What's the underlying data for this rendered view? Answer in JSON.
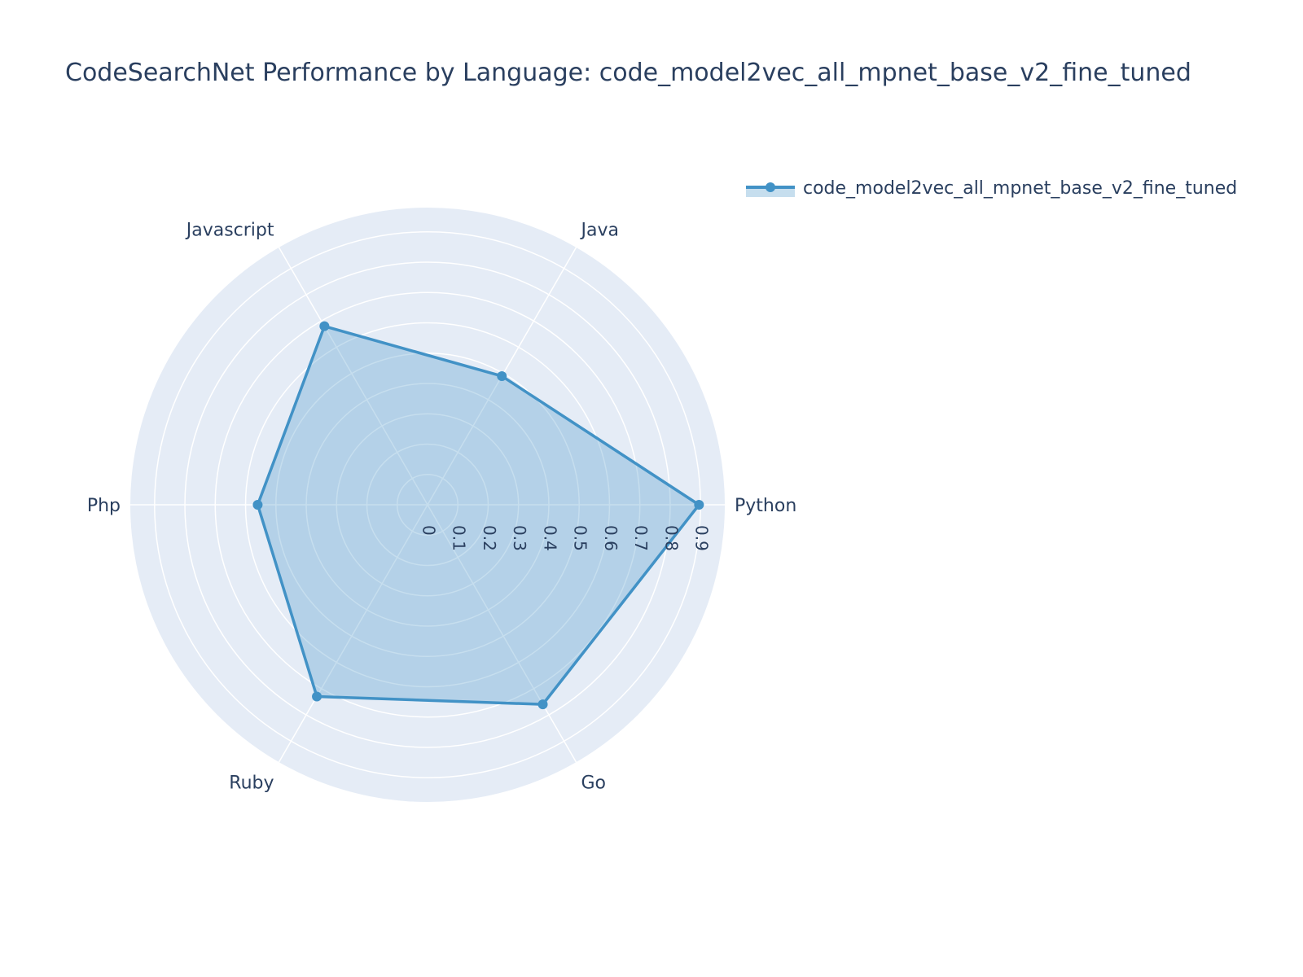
{
  "chart_data": {
    "type": "radar",
    "title": "CodeSearchNet Performance by Language: code_model2vec_all_mpnet_base_v2_fine_tuned",
    "categories": [
      "Python",
      "Java",
      "Javascript",
      "Php",
      "Ruby",
      "Go"
    ],
    "series": [
      {
        "name": "code_model2vec_all_mpnet_base_v2_fine_tuned",
        "values": [
          0.895,
          0.49,
          0.68,
          0.56,
          0.73,
          0.76
        ]
      }
    ],
    "radial_ticks": [
      "0",
      "0.1",
      "0.2",
      "0.3",
      "0.4",
      "0.5",
      "0.6",
      "0.7",
      "0.8",
      "0.9"
    ],
    "radial_range": [
      0,
      0.98
    ],
    "grid": true,
    "legend_position": "top-right",
    "colors": {
      "line": "#4292c6",
      "fill": "rgba(66,146,198,0.30)",
      "polar_bg": "#e5ecf6",
      "grid": "#ffffff",
      "text": "#2a3f5f"
    }
  }
}
